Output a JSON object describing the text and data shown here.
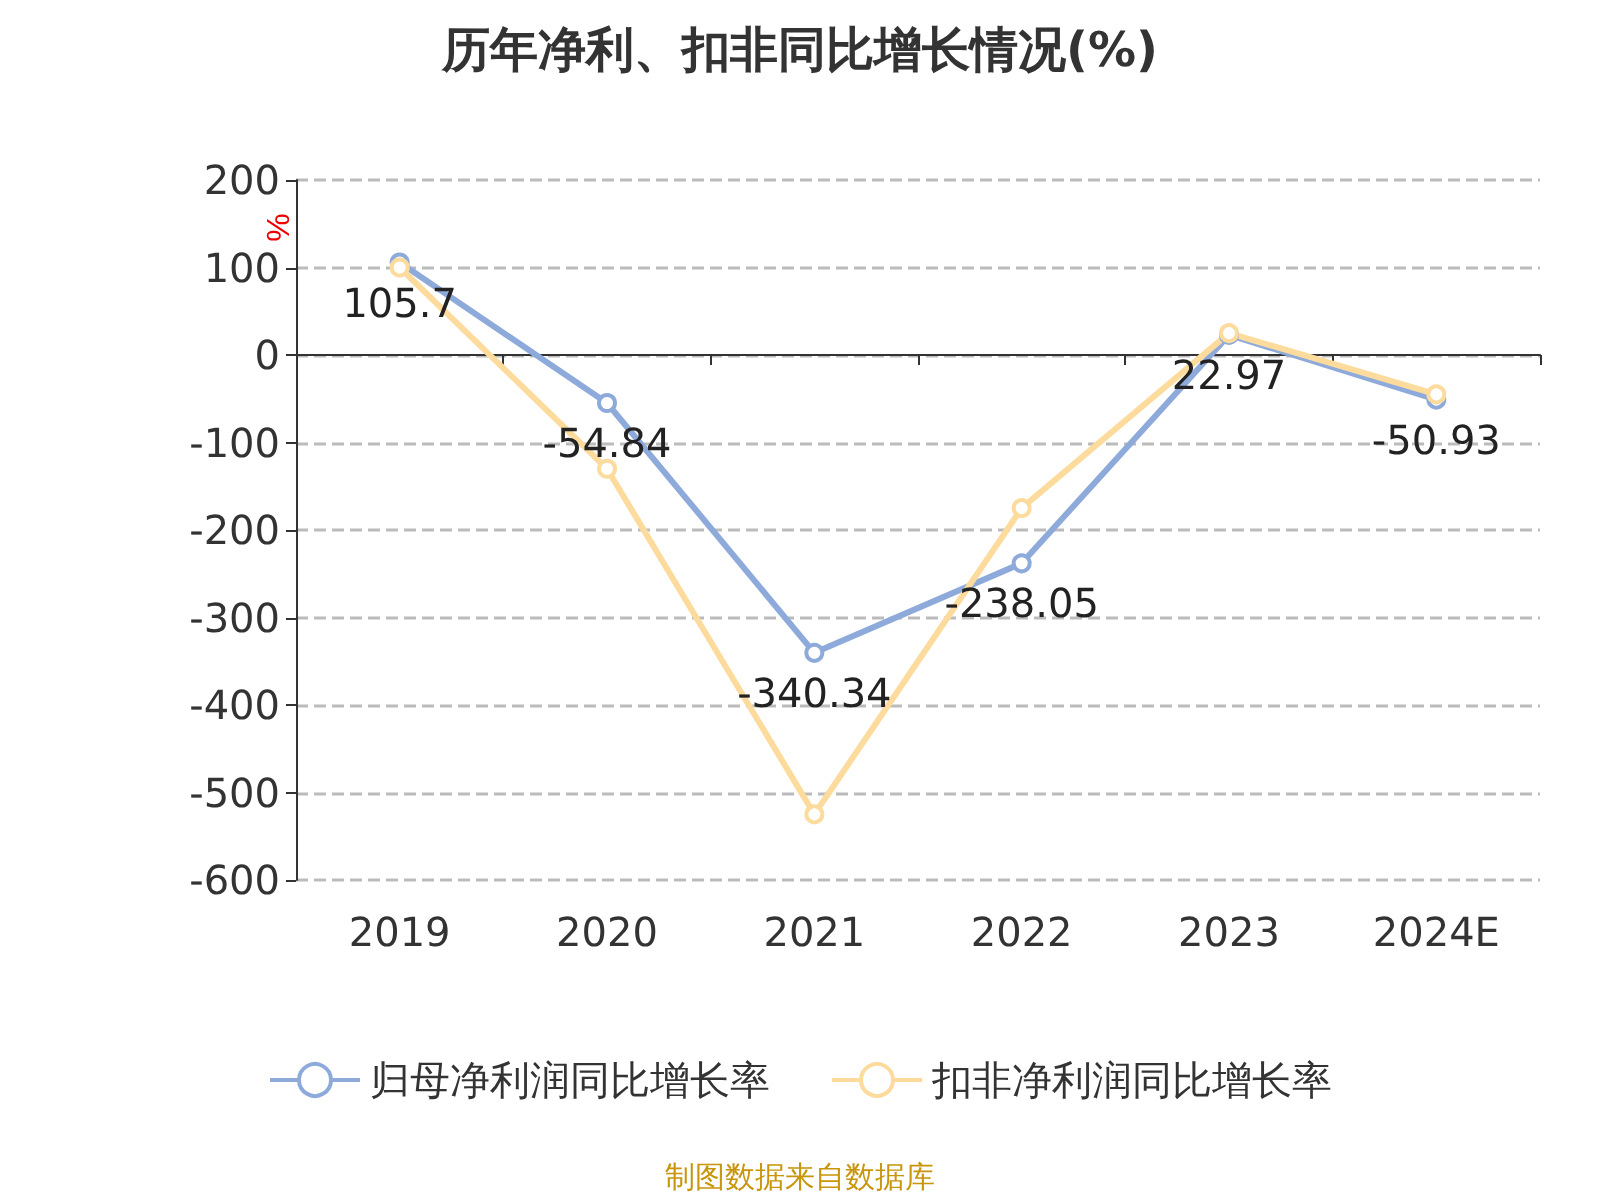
{
  "chart_data": {
    "type": "line",
    "title": "历年净利、扣非同比增长情况(%)",
    "ylabel": "%",
    "categories": [
      "2019",
      "2020",
      "2021",
      "2022",
      "2023",
      "2024E"
    ],
    "series": [
      {
        "name": "归母净利润同比增长率",
        "color": "#8eaadb",
        "values": [
          105.7,
          -54.84,
          -340.34,
          -238.05,
          22.97,
          -50.93
        ],
        "value_labels": [
          "105.7",
          "-54.84",
          "-340.34",
          "-238.05",
          "22.97",
          "-50.93"
        ]
      },
      {
        "name": "扣非净利润同比增长率",
        "color": "#fddb9c",
        "values": [
          100,
          -130,
          -525,
          -175,
          25,
          -45
        ]
      }
    ],
    "ylim": [
      -600,
      200
    ],
    "yticks": [
      -600,
      -500,
      -400,
      -300,
      -200,
      -100,
      0,
      100,
      200
    ],
    "grid": "y",
    "legend": "bottom",
    "marker": "circle",
    "line_style": "solid",
    "annotations": [
      "制图数据来自数据库"
    ]
  }
}
